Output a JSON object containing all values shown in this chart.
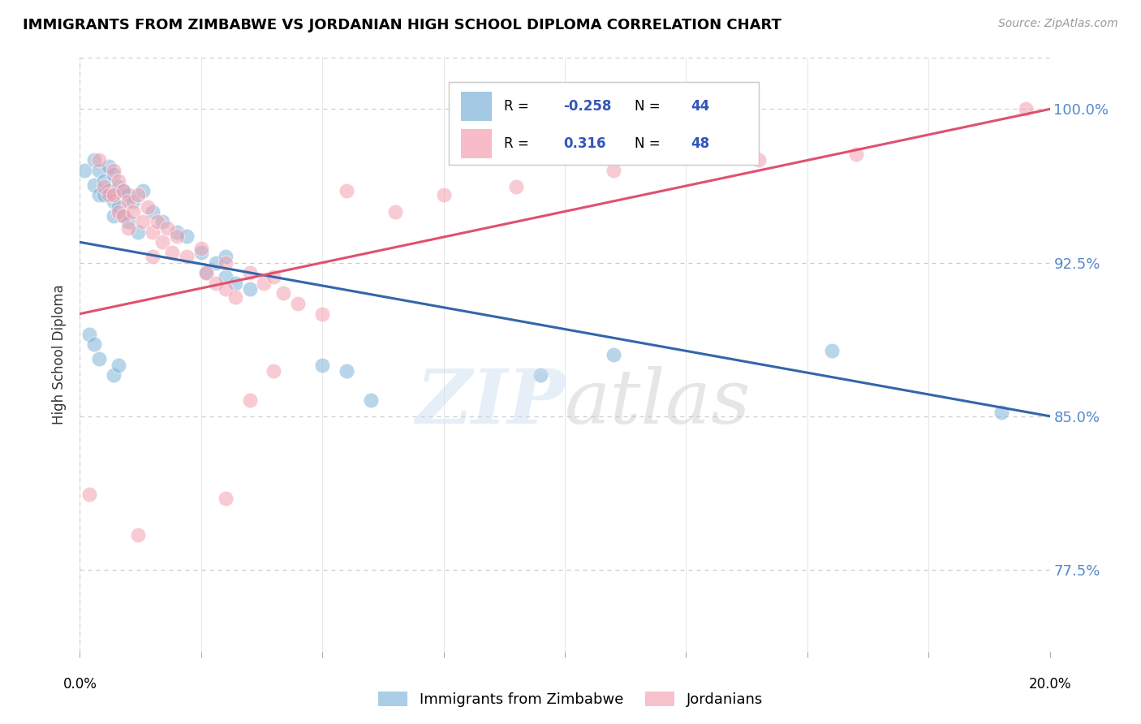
{
  "title": "IMMIGRANTS FROM ZIMBABWE VS JORDANIAN HIGH SCHOOL DIPLOMA CORRELATION CHART",
  "source": "Source: ZipAtlas.com",
  "ylabel": "High School Diploma",
  "y_ticks_pct": [
    77.5,
    85.0,
    92.5,
    100.0
  ],
  "y_tick_labels": [
    "77.5%",
    "85.0%",
    "92.5%",
    "100.0%"
  ],
  "x_range": [
    0.0,
    0.2
  ],
  "y_range": [
    0.735,
    1.025
  ],
  "legend_r_blue": "-0.258",
  "legend_n_blue": "44",
  "legend_r_pink": "0.316",
  "legend_n_pink": "48",
  "blue_color": "#7EB3D8",
  "pink_color": "#F4A0B0",
  "blue_line_color": "#3366AA",
  "pink_line_color": "#E05070",
  "blue_line_y0": 0.935,
  "blue_line_y1": 0.85,
  "pink_line_y0": 0.9,
  "pink_line_y1": 1.0,
  "blue_points": [
    [
      0.001,
      0.97
    ],
    [
      0.003,
      0.975
    ],
    [
      0.003,
      0.963
    ],
    [
      0.004,
      0.958
    ],
    [
      0.004,
      0.97
    ],
    [
      0.005,
      0.965
    ],
    [
      0.005,
      0.958
    ],
    [
      0.006,
      0.972
    ],
    [
      0.006,
      0.96
    ],
    [
      0.007,
      0.968
    ],
    [
      0.007,
      0.955
    ],
    [
      0.007,
      0.948
    ],
    [
      0.008,
      0.962
    ],
    [
      0.008,
      0.952
    ],
    [
      0.009,
      0.96
    ],
    [
      0.009,
      0.948
    ],
    [
      0.01,
      0.958
    ],
    [
      0.01,
      0.945
    ],
    [
      0.011,
      0.955
    ],
    [
      0.012,
      0.94
    ],
    [
      0.013,
      0.96
    ],
    [
      0.015,
      0.95
    ],
    [
      0.017,
      0.945
    ],
    [
      0.02,
      0.94
    ],
    [
      0.022,
      0.938
    ],
    [
      0.025,
      0.93
    ],
    [
      0.026,
      0.92
    ],
    [
      0.028,
      0.925
    ],
    [
      0.03,
      0.928
    ],
    [
      0.03,
      0.918
    ],
    [
      0.032,
      0.915
    ],
    [
      0.035,
      0.912
    ],
    [
      0.002,
      0.89
    ],
    [
      0.003,
      0.885
    ],
    [
      0.004,
      0.878
    ],
    [
      0.007,
      0.87
    ],
    [
      0.008,
      0.875
    ],
    [
      0.05,
      0.875
    ],
    [
      0.055,
      0.872
    ],
    [
      0.11,
      0.88
    ],
    [
      0.155,
      0.882
    ],
    [
      0.19,
      0.852
    ],
    [
      0.095,
      0.87
    ],
    [
      0.06,
      0.858
    ]
  ],
  "pink_points": [
    [
      0.004,
      0.975
    ],
    [
      0.005,
      0.962
    ],
    [
      0.006,
      0.958
    ],
    [
      0.007,
      0.97
    ],
    [
      0.007,
      0.958
    ],
    [
      0.008,
      0.965
    ],
    [
      0.008,
      0.95
    ],
    [
      0.009,
      0.96
    ],
    [
      0.009,
      0.948
    ],
    [
      0.01,
      0.955
    ],
    [
      0.01,
      0.942
    ],
    [
      0.011,
      0.95
    ],
    [
      0.012,
      0.958
    ],
    [
      0.013,
      0.945
    ],
    [
      0.014,
      0.952
    ],
    [
      0.015,
      0.94
    ],
    [
      0.015,
      0.928
    ],
    [
      0.016,
      0.945
    ],
    [
      0.017,
      0.935
    ],
    [
      0.018,
      0.942
    ],
    [
      0.019,
      0.93
    ],
    [
      0.02,
      0.938
    ],
    [
      0.022,
      0.928
    ],
    [
      0.025,
      0.932
    ],
    [
      0.026,
      0.92
    ],
    [
      0.028,
      0.915
    ],
    [
      0.03,
      0.925
    ],
    [
      0.03,
      0.912
    ],
    [
      0.032,
      0.908
    ],
    [
      0.035,
      0.92
    ],
    [
      0.038,
      0.915
    ],
    [
      0.04,
      0.918
    ],
    [
      0.042,
      0.91
    ],
    [
      0.045,
      0.905
    ],
    [
      0.05,
      0.9
    ],
    [
      0.055,
      0.96
    ],
    [
      0.065,
      0.95
    ],
    [
      0.075,
      0.958
    ],
    [
      0.09,
      0.962
    ],
    [
      0.11,
      0.97
    ],
    [
      0.14,
      0.975
    ],
    [
      0.16,
      0.978
    ],
    [
      0.195,
      1.0
    ],
    [
      0.002,
      0.812
    ],
    [
      0.03,
      0.81
    ],
    [
      0.012,
      0.792
    ],
    [
      0.04,
      0.872
    ],
    [
      0.035,
      0.858
    ]
  ]
}
